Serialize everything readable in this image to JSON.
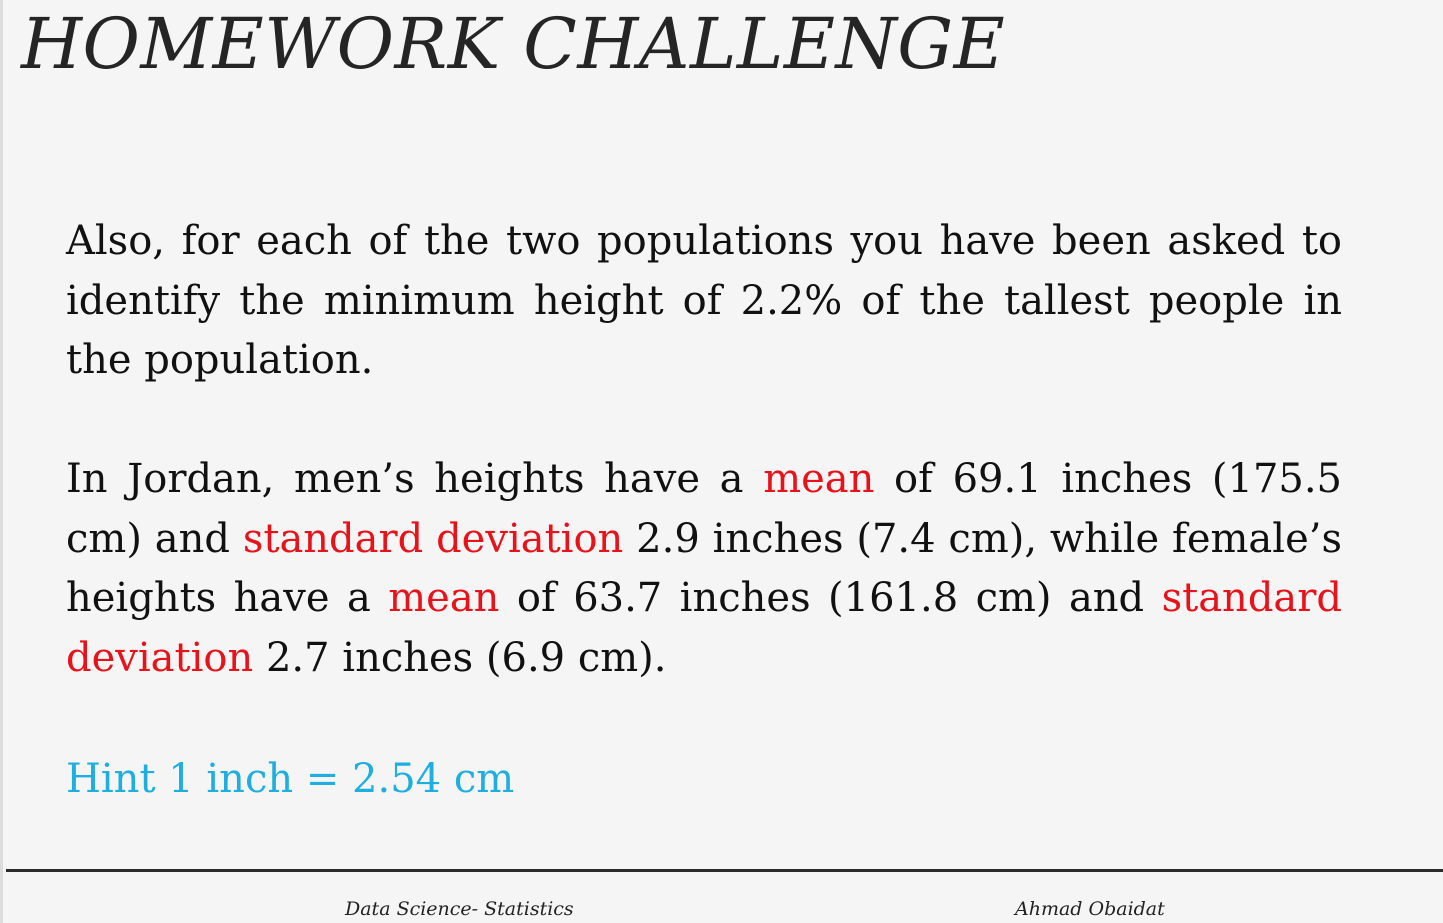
{
  "slide": {
    "title": "HOMEWORK CHALLENGE",
    "paragraph1": "Also, for each of the two populations you have been asked to identify the minimum height of 2.2% of the tallest people in the population.",
    "paragraph2": {
      "seg1": "In Jordan, men’s heights have a ",
      "seg2": "mean",
      "seg3": " of 69.1 inches (175.5 cm) and ",
      "seg4": "standard deviation",
      "seg5": " 2.9 inches (7.4 cm), while female’s heights have a ",
      "seg6": "mean",
      "seg7": " of 63.7 inches (161.8 cm) and ",
      "seg8": "standard deviation",
      "seg9": " 2.7 inches (6.9 cm)."
    },
    "hint": "Hint 1 inch = 2.54 cm"
  },
  "footer": {
    "left": "Data Science- Statistics",
    "right": "Ahmad Obaidat"
  },
  "colors": {
    "background": "#f5f5f5",
    "text": "#111111",
    "highlight": "#e8121a",
    "hint": "#1eaee0",
    "rule": "#2a2a2a"
  }
}
